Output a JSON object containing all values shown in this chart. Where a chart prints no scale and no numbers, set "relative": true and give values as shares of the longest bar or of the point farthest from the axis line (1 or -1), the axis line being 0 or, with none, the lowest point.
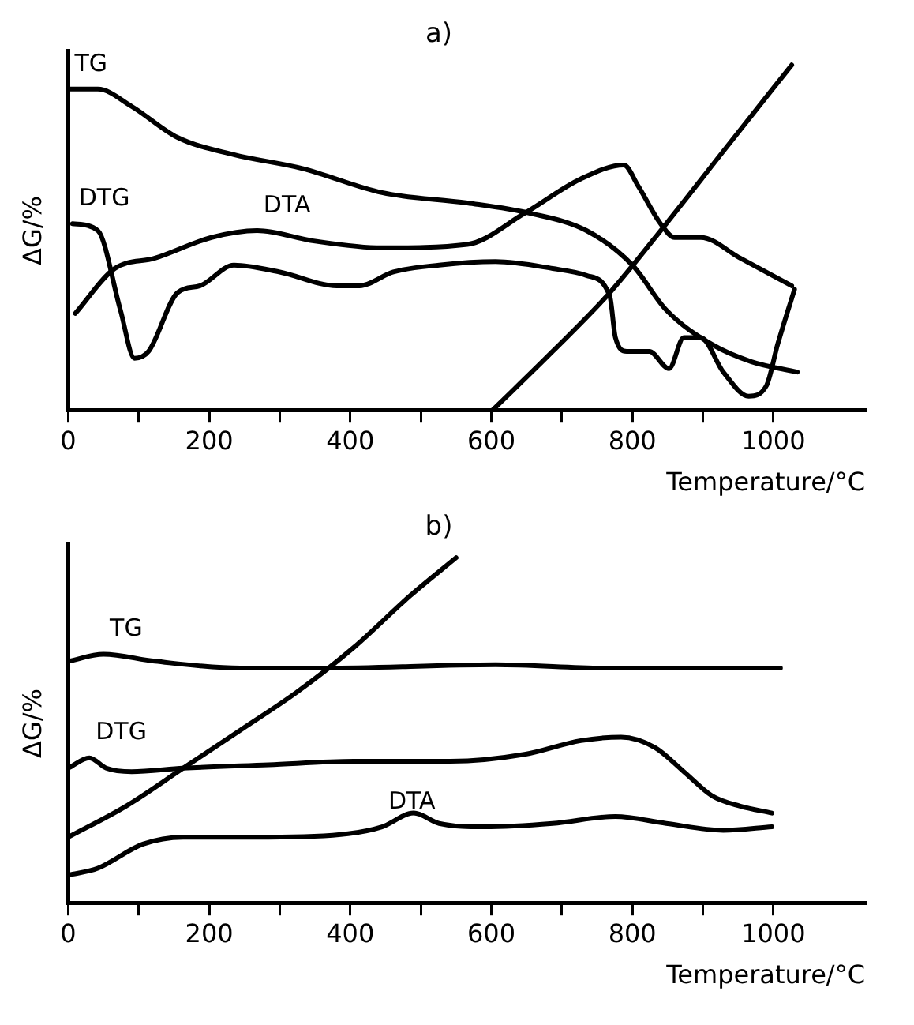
{
  "chart_data": [
    {
      "type": "line",
      "title": "a)",
      "xlabel": "Temperature/°C",
      "ylabel": "ΔG/%",
      "relative": true,
      "xlim": [
        0,
        1130
      ],
      "xticks": [
        0,
        {
          "value": 100,
          "label": null
        },
        200,
        {
          "value": 300,
          "label": null
        },
        400,
        {
          "value": 500,
          "label": null
        },
        600,
        {
          "value": 700,
          "label": null
        },
        800,
        {
          "value": 900,
          "label": null
        },
        1000
      ],
      "legend": false,
      "grid": false,
      "marker": "none",
      "line_style": "solid",
      "series": [
        {
          "name": "TG",
          "color": "#000000",
          "x": [
            0,
            42,
            90,
            155,
            235,
            332,
            445,
            566,
            655,
            735,
            800,
            848,
            913,
            969,
            1034
          ],
          "values": [
            0.93,
            0.93,
            0.88,
            0.79,
            0.74,
            0.7,
            0.63,
            0.6,
            0.57,
            0.52,
            0.42,
            0.29,
            0.19,
            0.14,
            0.11
          ]
        },
        {
          "name": "DTG",
          "color": "#000000",
          "x": [
            6,
            42,
            74,
            94,
            114,
            155,
            187,
            235,
            300,
            381,
            413,
            461,
            526,
            606,
            687,
            735,
            768,
            776,
            792,
            824,
            852,
            873,
            897,
            929,
            965,
            990,
            1006,
            1030
          ],
          "values": [
            0.54,
            0.52,
            0.29,
            0.15,
            0.17,
            0.34,
            0.36,
            0.42,
            0.4,
            0.36,
            0.36,
            0.4,
            0.42,
            0.43,
            0.41,
            0.39,
            0.33,
            0.21,
            0.17,
            0.17,
            0.12,
            0.21,
            0.21,
            0.11,
            0.04,
            0.07,
            0.19,
            0.35
          ]
        },
        {
          "name": "DTA",
          "color": "#000000",
          "x": [
            10,
            66,
            123,
            203,
            268,
            348,
            445,
            566,
            647,
            727,
            788,
            808,
            840,
            860,
            897,
            953,
            1026
          ],
          "values": [
            0.28,
            0.41,
            0.44,
            0.5,
            0.52,
            0.49,
            0.47,
            0.48,
            0.57,
            0.67,
            0.71,
            0.65,
            0.54,
            0.5,
            0.5,
            0.44,
            0.36
          ]
        },
        {
          "color": "#000000",
          "x": [
            602,
            687,
            768,
            848,
            929,
            1026
          ],
          "values": [
            0,
            0.17,
            0.34,
            0.54,
            0.75,
            1.0
          ]
        }
      ]
    },
    {
      "type": "line",
      "title": "b)",
      "xlabel": "Temperature/°C",
      "ylabel": "ΔG/%",
      "relative": true,
      "xlim": [
        0,
        1130
      ],
      "xticks": [
        0,
        {
          "value": 100,
          "label": null
        },
        200,
        {
          "value": 300,
          "label": null
        },
        400,
        {
          "value": 500,
          "label": null
        },
        600,
        {
          "value": 700,
          "label": null
        },
        800,
        {
          "value": 900,
          "label": null
        },
        1000
      ],
      "legend": false,
      "grid": false,
      "marker": "none",
      "line_style": "solid",
      "series": [
        {
          "name": "TG",
          "color": "#000000",
          "x": [
            0,
            50,
            123,
            244,
            365,
            606,
            768,
            848,
            1010
          ],
          "values": [
            0.7,
            0.72,
            0.7,
            0.68,
            0.68,
            0.69,
            0.68,
            0.68,
            0.68
          ]
        },
        {
          "name": "DTG",
          "color": "#000000",
          "x": [
            0,
            30,
            54,
            90,
            163,
            284,
            405,
            542,
            647,
            727,
            784,
            832,
            873,
            913,
            953,
            998
          ],
          "values": [
            0.39,
            0.42,
            0.39,
            0.38,
            0.39,
            0.4,
            0.41,
            0.41,
            0.43,
            0.47,
            0.48,
            0.45,
            0.38,
            0.31,
            0.28,
            0.26
          ]
        },
        {
          "name": "DTA",
          "color": "#000000",
          "x": [
            0,
            42,
            106,
            163,
            284,
            397,
            445,
            490,
            526,
            590,
            687,
            776,
            848,
            929,
            998
          ],
          "values": [
            0.08,
            0.1,
            0.17,
            0.19,
            0.19,
            0.2,
            0.22,
            0.26,
            0.23,
            0.22,
            0.23,
            0.25,
            0.23,
            0.21,
            0.22
          ]
        },
        {
          "color": "#000000",
          "x": [
            0,
            82,
            163,
            244,
            324,
            405,
            485,
            550
          ],
          "values": [
            0.19,
            0.28,
            0.39,
            0.5,
            0.61,
            0.74,
            0.89,
            1.0
          ]
        }
      ]
    }
  ]
}
